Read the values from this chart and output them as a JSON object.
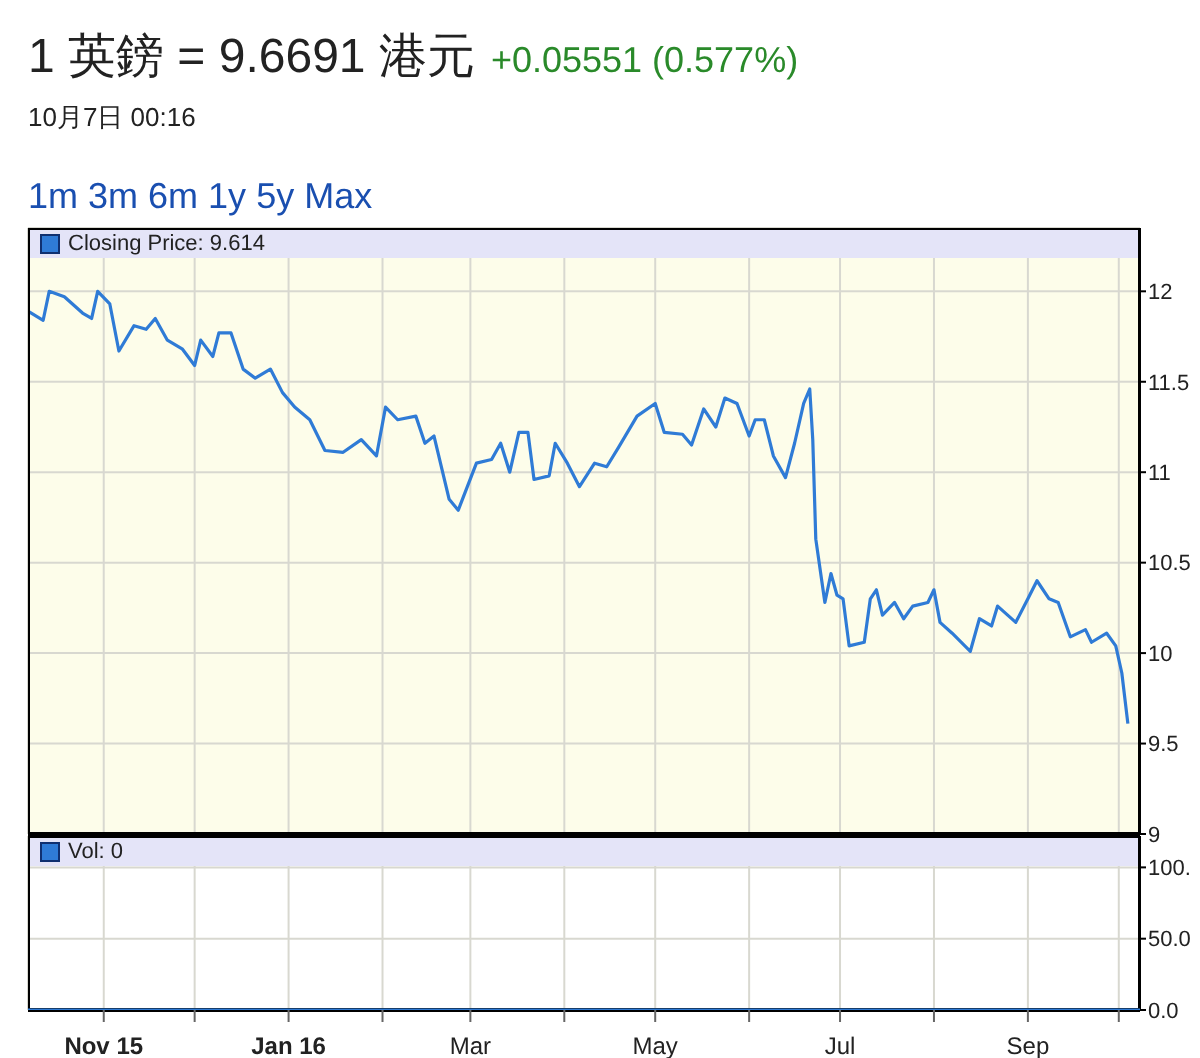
{
  "chart_data": [
    {
      "type": "line",
      "title": "1 英鎊 = 9.6691 港元",
      "subtitle": "10月7日 00:16",
      "annotations": [
        "+0.05551 (0.577%)",
        "1m",
        "3m",
        "6m",
        "1y",
        "5y",
        "Max"
      ],
      "xlim": [
        "2015-10-07",
        "2016-10-08"
      ],
      "xticks": [
        {
          "value": "2015-11-01",
          "label": null
        },
        {
          "value": "2015-12-01",
          "label": null
        },
        {
          "value": "2016-01-01",
          "label": null
        },
        {
          "value": "2016-02-01",
          "label": null
        },
        {
          "value": "2016-03-01",
          "label": null
        },
        {
          "value": "2016-04-01",
          "label": null
        },
        {
          "value": "2016-05-01",
          "label": null
        },
        {
          "value": "2016-06-01",
          "label": null
        },
        {
          "value": "2016-07-01",
          "label": null
        },
        {
          "value": "2016-08-01",
          "label": null
        },
        {
          "value": "2016-09-01",
          "label": null
        },
        {
          "value": "2016-10-01",
          "label": null
        }
      ],
      "ylim": [
        9,
        12.35
      ],
      "yticks": [
        9,
        9.5,
        10,
        10.5,
        11,
        11.5,
        12
      ],
      "grid": true,
      "legend": "top left",
      "tick_labels": "y",
      "series": [
        {
          "name": "Closing Price: 9.614",
          "color": "#2f7bd6",
          "x": [
            "2015-10-07",
            "2015-10-12",
            "2015-10-14",
            "2015-10-19",
            "2015-10-25",
            "2015-10-28",
            "2015-10-30",
            "2015-11-03",
            "2015-11-06",
            "2015-11-11",
            "2015-11-15",
            "2015-11-18",
            "2015-11-22",
            "2015-11-27",
            "2015-12-01",
            "2015-12-03",
            "2015-12-07",
            "2015-12-09",
            "2015-12-13",
            "2015-12-17",
            "2015-12-21",
            "2015-12-26",
            "2015-12-30",
            "2016-01-03",
            "2016-01-08",
            "2016-01-13",
            "2016-01-19",
            "2016-01-25",
            "2016-01-30",
            "2016-02-02",
            "2016-02-06",
            "2016-02-12",
            "2016-02-15",
            "2016-02-18",
            "2016-02-23",
            "2016-02-26",
            "2016-03-03",
            "2016-03-08",
            "2016-03-11",
            "2016-03-14",
            "2016-03-17",
            "2016-03-20",
            "2016-03-22",
            "2016-03-27",
            "2016-03-29",
            "2016-04-02",
            "2016-04-06",
            "2016-04-11",
            "2016-04-15",
            "2016-04-19",
            "2016-04-25",
            "2016-05-01",
            "2016-05-04",
            "2016-05-10",
            "2016-05-13",
            "2016-05-17",
            "2016-05-21",
            "2016-05-24",
            "2016-05-28",
            "2016-06-01",
            "2016-06-03",
            "2016-06-06",
            "2016-06-09",
            "2016-06-13",
            "2016-06-16",
            "2016-06-19",
            "2016-06-21",
            "2016-06-22",
            "2016-06-23",
            "2016-06-26",
            "2016-06-28",
            "2016-06-30",
            "2016-07-02",
            "2016-07-04",
            "2016-07-09",
            "2016-07-11",
            "2016-07-13",
            "2016-07-15",
            "2016-07-19",
            "2016-07-22",
            "2016-07-25",
            "2016-07-30",
            "2016-08-01",
            "2016-08-03",
            "2016-08-07",
            "2016-08-13",
            "2016-08-16",
            "2016-08-20",
            "2016-08-22",
            "2016-08-28",
            "2016-09-01",
            "2016-09-04",
            "2016-09-08",
            "2016-09-11",
            "2016-09-15",
            "2016-09-20",
            "2016-09-22",
            "2016-09-27",
            "2016-09-30",
            "2016-10-02",
            "2016-10-04"
          ],
          "values": [
            11.89,
            11.84,
            12.0,
            11.97,
            11.88,
            11.85,
            12.0,
            11.93,
            11.67,
            11.81,
            11.79,
            11.85,
            11.73,
            11.68,
            11.59,
            11.73,
            11.64,
            11.77,
            11.77,
            11.57,
            11.52,
            11.57,
            11.44,
            11.36,
            11.29,
            11.12,
            11.11,
            11.18,
            11.09,
            11.36,
            11.29,
            11.31,
            11.16,
            11.2,
            10.85,
            10.79,
            11.05,
            11.07,
            11.16,
            11.0,
            11.22,
            11.22,
            10.96,
            10.98,
            11.16,
            11.05,
            10.92,
            11.05,
            11.03,
            11.14,
            11.31,
            11.38,
            11.22,
            11.21,
            11.15,
            11.35,
            11.25,
            11.41,
            11.38,
            11.2,
            11.29,
            11.29,
            11.09,
            10.97,
            11.16,
            11.38,
            11.46,
            11.18,
            10.63,
            10.28,
            10.44,
            10.32,
            10.3,
            10.04,
            10.06,
            10.3,
            10.35,
            10.21,
            10.28,
            10.19,
            10.26,
            10.28,
            10.35,
            10.17,
            10.11,
            10.01,
            10.19,
            10.15,
            10.26,
            10.17,
            10.3,
            10.4,
            10.3,
            10.28,
            10.09,
            10.13,
            10.06,
            10.11,
            10.04,
            9.89,
            9.61
          ]
        }
      ]
    },
    {
      "type": "line",
      "xlim": [
        "2015-10-07",
        "2016-10-08"
      ],
      "xticks": [
        {
          "value": "2015-11-01",
          "label": "Nov 15"
        },
        {
          "value": "2015-12-01",
          "label": null
        },
        {
          "value": "2016-01-01",
          "label": "Jan 16"
        },
        {
          "value": "2016-02-01",
          "label": null
        },
        {
          "value": "2016-03-01",
          "label": "Mar"
        },
        {
          "value": "2016-04-01",
          "label": null
        },
        {
          "value": "2016-05-01",
          "label": "May"
        },
        {
          "value": "2016-06-01",
          "label": null
        },
        {
          "value": "2016-07-01",
          "label": "Jul"
        },
        {
          "value": "2016-08-01",
          "label": null
        },
        {
          "value": "2016-09-01",
          "label": "Sep"
        },
        {
          "value": "2016-10-01",
          "label": null
        }
      ],
      "ylim": [
        0,
        122
      ],
      "yticks": [
        {
          "value": 0,
          "label": "0.0"
        },
        {
          "value": 50,
          "label": "50.0"
        },
        {
          "value": 100,
          "label": "100."
        }
      ],
      "grid": true,
      "legend": "top left",
      "series": [
        {
          "name": "Vol: 0",
          "color": "#2f7bd6",
          "x": [
            "2015-10-07",
            "2016-10-08"
          ],
          "values": [
            0,
            0
          ]
        }
      ]
    }
  ]
}
